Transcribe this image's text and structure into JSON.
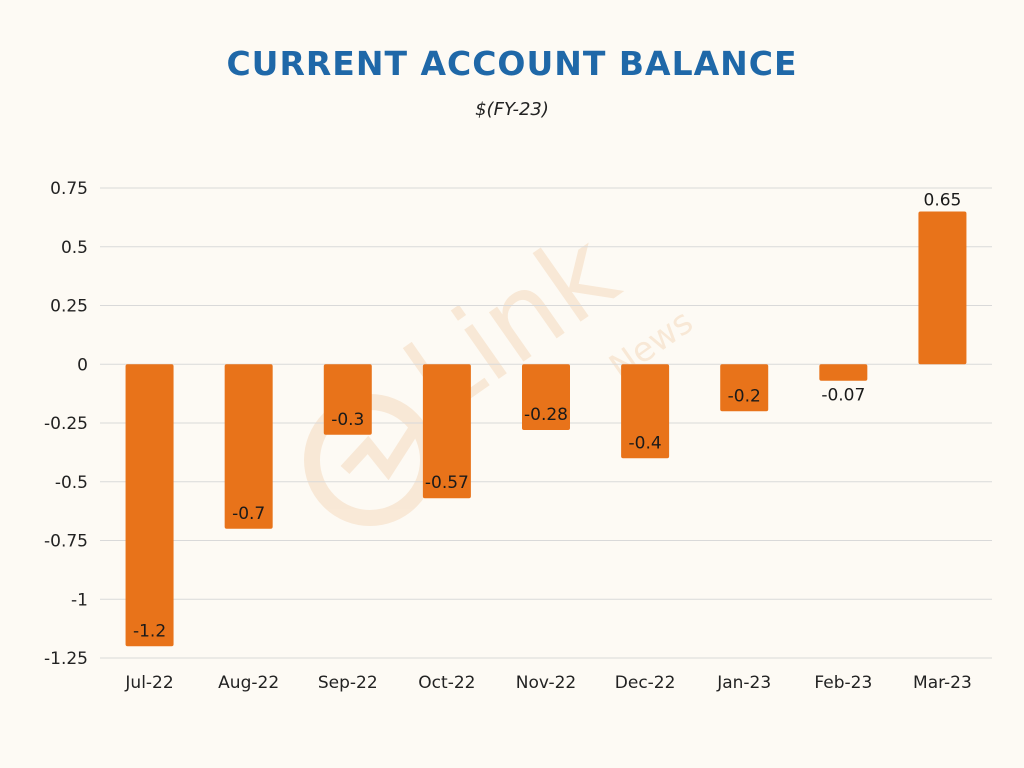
{
  "chart_data": {
    "type": "bar",
    "title": "CURRENT ACCOUNT BALANCE",
    "subtitle": "$(FY-23)",
    "xlabel": "",
    "ylabel": "",
    "categories": [
      "Jul-22",
      "Aug-22",
      "Sep-22",
      "Oct-22",
      "Nov-22",
      "Dec-22",
      "Jan-23",
      "Feb-23",
      "Mar-23"
    ],
    "values": [
      -1.2,
      -0.7,
      -0.3,
      -0.57,
      -0.28,
      -0.4,
      -0.2,
      -0.07,
      0.65
    ],
    "data_labels": [
      "-1.2",
      "-0.7",
      "-0.3",
      "-0.57",
      "-0.28",
      "-0.4",
      "-0.2",
      "-0.07",
      "0.65"
    ],
    "yticks": [
      0.75,
      0.5,
      0.25,
      0,
      -0.25,
      -0.5,
      -0.75,
      -1,
      -1.25
    ],
    "ytick_labels": [
      "0.75",
      "0.5",
      "0.25",
      "0",
      "-0.25",
      "-0.5",
      "-0.75",
      "-1",
      "-1.25"
    ],
    "ylim": [
      -1.25,
      0.75
    ],
    "grid": true,
    "legend": "none",
    "bar_color": "#e8731a"
  },
  "colors": {
    "background": "#fdfaf4",
    "title": "#1f68a8",
    "bar": "#e8731a",
    "grid": "#d9d9d9",
    "watermark": "#f0c9a0"
  },
  "watermark": {
    "brand": "Link",
    "tagline": "News"
  }
}
